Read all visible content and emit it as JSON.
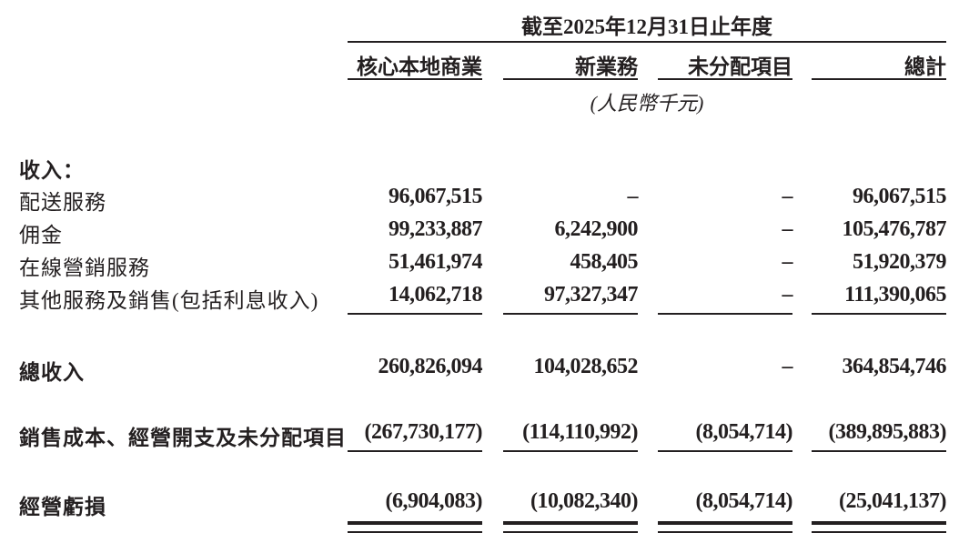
{
  "header": {
    "period": "截至2025年12月31日止年度",
    "columns": [
      "核心本地商業",
      "新業務",
      "未分配項目",
      "總計"
    ],
    "unit": "(人民幣千元)"
  },
  "sections": {
    "revenue_heading": "收入：",
    "revenue_rows": [
      {
        "label": "配送服務",
        "values": [
          "96,067,515",
          "–",
          "–",
          "96,067,515"
        ]
      },
      {
        "label": "佣金",
        "values": [
          "99,233,887",
          "6,242,900",
          "–",
          "105,476,787"
        ]
      },
      {
        "label": "在線營銷服務",
        "values": [
          "51,461,974",
          "458,405",
          "–",
          "51,920,379"
        ]
      },
      {
        "label": "其他服務及銷售(包括利息收入)",
        "values": [
          "14,062,718",
          "97,327,347",
          "–",
          "111,390,065"
        ]
      }
    ],
    "total_revenue": {
      "label": "總收入",
      "values": [
        "260,826,094",
        "104,028,652",
        "–",
        "364,854,746"
      ]
    },
    "costs": {
      "label": "銷售成本、經營開支及未分配項目",
      "values": [
        "(267,730,177)",
        "(114,110,992)",
        "(8,054,714)",
        "(389,895,883)"
      ]
    },
    "operating_loss": {
      "label": "經營虧損",
      "values": [
        "(6,904,083)",
        "(10,082,340)",
        "(8,054,714)",
        "(25,041,137)"
      ]
    }
  }
}
